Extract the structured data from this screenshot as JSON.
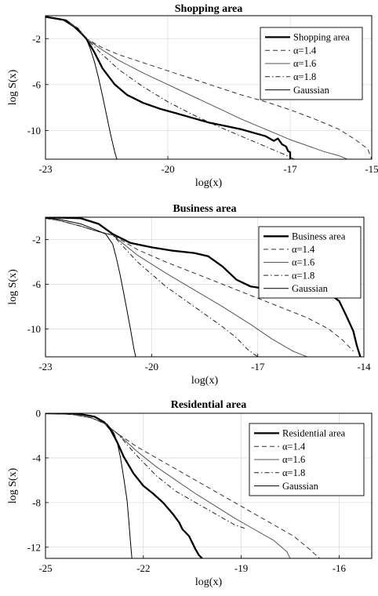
{
  "chart_data": [
    {
      "type": "line",
      "title": "Shopping area",
      "xlabel": "log(x)",
      "ylabel": "log S(x)",
      "xlim": [
        -23,
        -15
      ],
      "ylim": [
        -12.5,
        0
      ],
      "xticks": [
        -23,
        -20,
        -17,
        -15
      ],
      "yticks": [
        -2,
        -6,
        -10
      ],
      "xtick_labels": [
        "-23",
        "-20",
        "-17",
        "-15"
      ],
      "ytick_labels": [
        "-2",
        "-6",
        "-10"
      ],
      "grid": true,
      "legend_position": "top-right",
      "series": [
        {
          "name": "Shopping area",
          "color": "#000000",
          "style": "solid-thick",
          "x": [
            -23,
            -22.5,
            -22.2,
            -22.0,
            -21.8,
            -21.6,
            -21.3,
            -21.0,
            -20.6,
            -20.2,
            -19.8,
            -19.4,
            -19.0,
            -18.6,
            -18.2,
            -17.9,
            -17.6,
            -17.4,
            -17.3,
            -17.2,
            -17.1,
            -17.05,
            -17.0,
            -17.0
          ],
          "y": [
            -0.1,
            -0.4,
            -1.2,
            -2.0,
            -3.2,
            -4.6,
            -6.0,
            -6.9,
            -7.6,
            -8.1,
            -8.5,
            -8.9,
            -9.3,
            -9.6,
            -9.9,
            -10.2,
            -10.5,
            -10.9,
            -10.7,
            -11.2,
            -11.4,
            -11.8,
            -11.9,
            -12.5
          ]
        },
        {
          "name": "α=1.4",
          "color": "#333333",
          "style": "dashed",
          "x": [
            -23,
            -22.6,
            -22.2,
            -22.0,
            -21.6,
            -21.2,
            -20.6,
            -20.0,
            -19.4,
            -18.8,
            -18.2,
            -17.6,
            -17.0,
            -16.4,
            -15.8,
            -15.4,
            -15.1,
            -15.0
          ],
          "y": [
            -0.05,
            -0.3,
            -1.1,
            -2.0,
            -2.8,
            -3.4,
            -4.1,
            -4.8,
            -5.5,
            -6.2,
            -6.9,
            -7.5,
            -8.2,
            -9.0,
            -9.9,
            -10.8,
            -11.6,
            -12.5
          ]
        },
        {
          "name": "α=1.6",
          "color": "#555555",
          "style": "solid",
          "x": [
            -23,
            -22.6,
            -22.2,
            -22.0,
            -21.6,
            -21.2,
            -20.6,
            -20.0,
            -19.4,
            -18.8,
            -18.2,
            -17.6,
            -17.0,
            -16.6,
            -16.2,
            -15.8,
            -15.6
          ],
          "y": [
            -0.05,
            -0.3,
            -1.1,
            -2.0,
            -3.0,
            -3.9,
            -5.0,
            -6.0,
            -7.0,
            -8.0,
            -9.0,
            -9.9,
            -10.8,
            -11.3,
            -11.8,
            -12.2,
            -12.5
          ]
        },
        {
          "name": "α=1.8",
          "color": "#222222",
          "style": "dashdot",
          "x": [
            -23,
            -22.6,
            -22.2,
            -22.0,
            -21.6,
            -21.2,
            -20.6,
            -20.0,
            -19.4,
            -18.8,
            -18.2,
            -17.6,
            -17.2,
            -16.9
          ],
          "y": [
            -0.05,
            -0.3,
            -1.1,
            -2.0,
            -3.4,
            -4.7,
            -6.2,
            -7.5,
            -8.6,
            -9.6,
            -10.5,
            -11.4,
            -12.0,
            -12.5
          ]
        },
        {
          "name": "Gaussian",
          "color": "#000000",
          "style": "solid-thin",
          "x": [
            -23,
            -22.6,
            -22.3,
            -22.0,
            -21.9,
            -21.8,
            -21.7,
            -21.6,
            -21.5,
            -21.4,
            -21.3,
            -21.25
          ],
          "y": [
            -0.05,
            -0.3,
            -1.0,
            -2.0,
            -2.9,
            -4.0,
            -5.4,
            -7.0,
            -8.7,
            -10.4,
            -11.9,
            -12.5
          ]
        }
      ]
    },
    {
      "type": "line",
      "title": "Business area",
      "xlabel": "log(x)",
      "ylabel": "log S(x)",
      "xlim": [
        -23,
        -14
      ],
      "ylim": [
        -12.5,
        0
      ],
      "xticks": [
        -23,
        -20,
        -17,
        -14
      ],
      "yticks": [
        -2,
        -6,
        -10
      ],
      "xtick_labels": [
        "-23",
        "-20",
        "-17",
        "-14"
      ],
      "ytick_labels": [
        "-2",
        "-6",
        "-10"
      ],
      "grid": true,
      "legend_position": "top-right",
      "series": [
        {
          "name": "Business area",
          "color": "#000000",
          "style": "solid-thick",
          "x": [
            -23,
            -22.0,
            -21.5,
            -21.1,
            -20.6,
            -20.0,
            -19.4,
            -18.8,
            -18.4,
            -18.0,
            -17.6,
            -17.2,
            -16.8,
            -16.2,
            -15.6,
            -15.0,
            -14.7,
            -14.5,
            -14.3,
            -14.2,
            -14.1
          ],
          "y": [
            0,
            -0.1,
            -0.6,
            -1.5,
            -2.3,
            -2.7,
            -3.0,
            -3.2,
            -3.5,
            -4.4,
            -5.6,
            -6.2,
            -6.4,
            -6.5,
            -6.6,
            -6.8,
            -7.5,
            -8.8,
            -10.2,
            -11.5,
            -12.5
          ]
        },
        {
          "name": "α=1.4",
          "color": "#333333",
          "style": "dashed",
          "x": [
            -23,
            -22.6,
            -22.0,
            -21.6,
            -21.1,
            -20.4,
            -19.6,
            -18.8,
            -18.0,
            -17.2,
            -16.4,
            -15.6,
            -15.0,
            -14.6,
            -14.3
          ],
          "y": [
            -0.1,
            -0.3,
            -0.8,
            -1.2,
            -1.6,
            -2.9,
            -4.0,
            -5.0,
            -6.0,
            -7.0,
            -8.0,
            -9.0,
            -10.0,
            -11.0,
            -12.0
          ]
        },
        {
          "name": "α=1.6",
          "color": "#555555",
          "style": "solid",
          "x": [
            -23,
            -22.6,
            -22.0,
            -21.6,
            -21.1,
            -20.4,
            -19.6,
            -18.8,
            -18.0,
            -17.2,
            -16.6,
            -16.0,
            -15.6
          ],
          "y": [
            -0.1,
            -0.3,
            -0.8,
            -1.2,
            -1.6,
            -3.4,
            -5.0,
            -6.5,
            -8.0,
            -9.6,
            -10.9,
            -12.0,
            -12.5
          ]
        },
        {
          "name": "α=1.8",
          "color": "#222222",
          "style": "dashdot",
          "x": [
            -23,
            -22.6,
            -22.0,
            -21.6,
            -21.1,
            -20.4,
            -19.6,
            -18.8,
            -18.0,
            -17.6,
            -17.3,
            -17.0
          ],
          "y": [
            -0.1,
            -0.3,
            -0.8,
            -1.2,
            -1.6,
            -4.0,
            -6.2,
            -8.0,
            -9.8,
            -10.8,
            -11.8,
            -12.5
          ]
        },
        {
          "name": "Gaussian",
          "color": "#000000",
          "style": "solid-thin",
          "x": [
            -23,
            -22.6,
            -22.0,
            -21.6,
            -21.3,
            -21.1,
            -21.0,
            -20.9,
            -20.8,
            -20.7,
            -20.6,
            -20.5,
            -20.45
          ],
          "y": [
            -0.05,
            -0.2,
            -0.6,
            -1.1,
            -1.5,
            -2.4,
            -3.6,
            -5.0,
            -6.6,
            -8.3,
            -10.0,
            -11.8,
            -12.5
          ]
        }
      ]
    },
    {
      "type": "line",
      "title": "Residential area",
      "xlabel": "log(x)",
      "ylabel": "log S(x)",
      "xlim": [
        -25,
        -15
      ],
      "ylim": [
        -13,
        0
      ],
      "xticks": [
        -25,
        -22,
        -19,
        -16
      ],
      "yticks": [
        0,
        -4,
        -8,
        -12
      ],
      "xtick_labels": [
        "-25",
        "-22",
        "-19",
        "-16"
      ],
      "ytick_labels": [
        "0",
        "-4",
        "-8",
        "-12"
      ],
      "grid": true,
      "legend_position": "top-right",
      "series": [
        {
          "name": "Residential area",
          "color": "#000000",
          "style": "solid-thick",
          "x": [
            -25,
            -24.0,
            -23.5,
            -23.2,
            -23.0,
            -22.8,
            -22.6,
            -22.3,
            -22.0,
            -21.7,
            -21.4,
            -21.1,
            -20.9,
            -20.8,
            -20.6,
            -20.5,
            -20.4,
            -20.3,
            -20.2
          ],
          "y": [
            0,
            -0.05,
            -0.3,
            -0.8,
            -1.5,
            -2.6,
            -3.9,
            -5.4,
            -6.5,
            -7.2,
            -8.0,
            -9.0,
            -9.8,
            -10.4,
            -11.0,
            -11.6,
            -12.2,
            -12.7,
            -13.0
          ]
        },
        {
          "name": "α=1.4",
          "color": "#333333",
          "style": "dashed",
          "x": [
            -25,
            -24.2,
            -23.6,
            -23.2,
            -22.8,
            -22.2,
            -21.6,
            -21.0,
            -20.4,
            -19.8,
            -19.2,
            -18.6,
            -18.0,
            -17.4,
            -16.9,
            -16.6
          ],
          "y": [
            0,
            -0.1,
            -0.4,
            -0.9,
            -1.8,
            -3.0,
            -4.0,
            -5.0,
            -6.0,
            -7.0,
            -8.0,
            -9.0,
            -10.0,
            -11.0,
            -12.2,
            -13.0
          ]
        },
        {
          "name": "α=1.6",
          "color": "#555555",
          "style": "solid",
          "x": [
            -25,
            -24.2,
            -23.6,
            -23.2,
            -22.8,
            -22.2,
            -21.6,
            -21.0,
            -20.4,
            -19.8,
            -19.2,
            -18.6,
            -18.0,
            -17.6,
            -17.5
          ],
          "y": [
            0,
            -0.1,
            -0.4,
            -0.9,
            -1.8,
            -3.4,
            -4.8,
            -6.0,
            -7.2,
            -8.3,
            -9.4,
            -10.4,
            -11.4,
            -12.4,
            -13.0
          ]
        },
        {
          "name": "α=1.8",
          "color": "#222222",
          "style": "dashdot",
          "x": [
            -25,
            -24.2,
            -23.6,
            -23.2,
            -22.8,
            -22.2,
            -21.6,
            -21.0,
            -20.4,
            -19.8,
            -19.2,
            -18.9
          ],
          "y": [
            0,
            -0.1,
            -0.4,
            -0.9,
            -1.8,
            -3.8,
            -5.6,
            -7.0,
            -8.0,
            -9.0,
            -10.0,
            -10.3
          ]
        },
        {
          "name": "Gaussian",
          "color": "#000000",
          "style": "solid-thin",
          "x": [
            -25,
            -24.0,
            -23.5,
            -23.1,
            -22.9,
            -22.8,
            -22.7,
            -22.6,
            -22.5,
            -22.45,
            -22.4,
            -22.35
          ],
          "y": [
            0,
            -0.05,
            -0.3,
            -1.0,
            -1.8,
            -2.6,
            -4.0,
            -5.8,
            -7.8,
            -9.5,
            -11.4,
            -13.0
          ]
        }
      ]
    }
  ]
}
